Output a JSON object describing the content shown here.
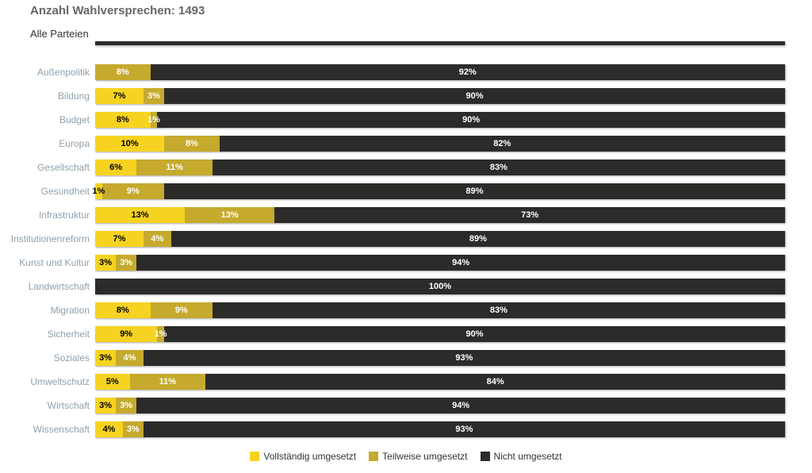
{
  "header": {
    "title": "Anzahl Wahlversprechen: 1493",
    "subtitle": "Alle Parteien"
  },
  "colors": {
    "full": "#F7D321",
    "partial": "#C5AA2D",
    "none": "#2B2B29",
    "label_on_full": "#000000",
    "label_on_partial": "#FFFFFF",
    "label_on_none": "#FFFFFF",
    "category_label": "#8FA0AC",
    "title_text": "#666666"
  },
  "legend": [
    {
      "key": "full",
      "label": "Vollständig umgesetzt"
    },
    {
      "key": "partial",
      "label": "Teilweise umgesetzt"
    },
    {
      "key": "none",
      "label": "Nicht umgesetzt"
    }
  ],
  "chart_data": {
    "type": "bar",
    "stacked": true,
    "orientation": "horizontal",
    "value_suffix": "%",
    "xlim": [
      0,
      100
    ],
    "grid": false,
    "legend_position": "bottom-center",
    "title": "Anzahl Wahlversprechen: 1493",
    "subtitle": "Alle Parteien",
    "categories": [
      "Außenpolitik",
      "Bildung",
      "Budget",
      "Europa",
      "Gesellschaft",
      "Gesundheit",
      "Infrastruktur",
      "Institutionenreform",
      "Kunst und Kultur",
      "Landwirtschaft",
      "Migration",
      "Sicherheit",
      "Soziales",
      "Umweltschutz",
      "Wirtschaft",
      "Wissenschaft"
    ],
    "series": [
      {
        "key": "full",
        "name": "Vollständig umgesetzt",
        "values": [
          0,
          7,
          8,
          10,
          6,
          1,
          13,
          7,
          3,
          0,
          8,
          9,
          3,
          5,
          3,
          4
        ]
      },
      {
        "key": "partial",
        "name": "Teilweise umgesetzt",
        "values": [
          8,
          3,
          1,
          8,
          11,
          9,
          13,
          4,
          3,
          0,
          9,
          1,
          4,
          11,
          3,
          3
        ]
      },
      {
        "key": "none",
        "name": "Nicht umgesetzt",
        "values": [
          92,
          90,
          90,
          82,
          83,
          89,
          73,
          89,
          94,
          100,
          83,
          90,
          93,
          84,
          94,
          93
        ]
      }
    ]
  }
}
